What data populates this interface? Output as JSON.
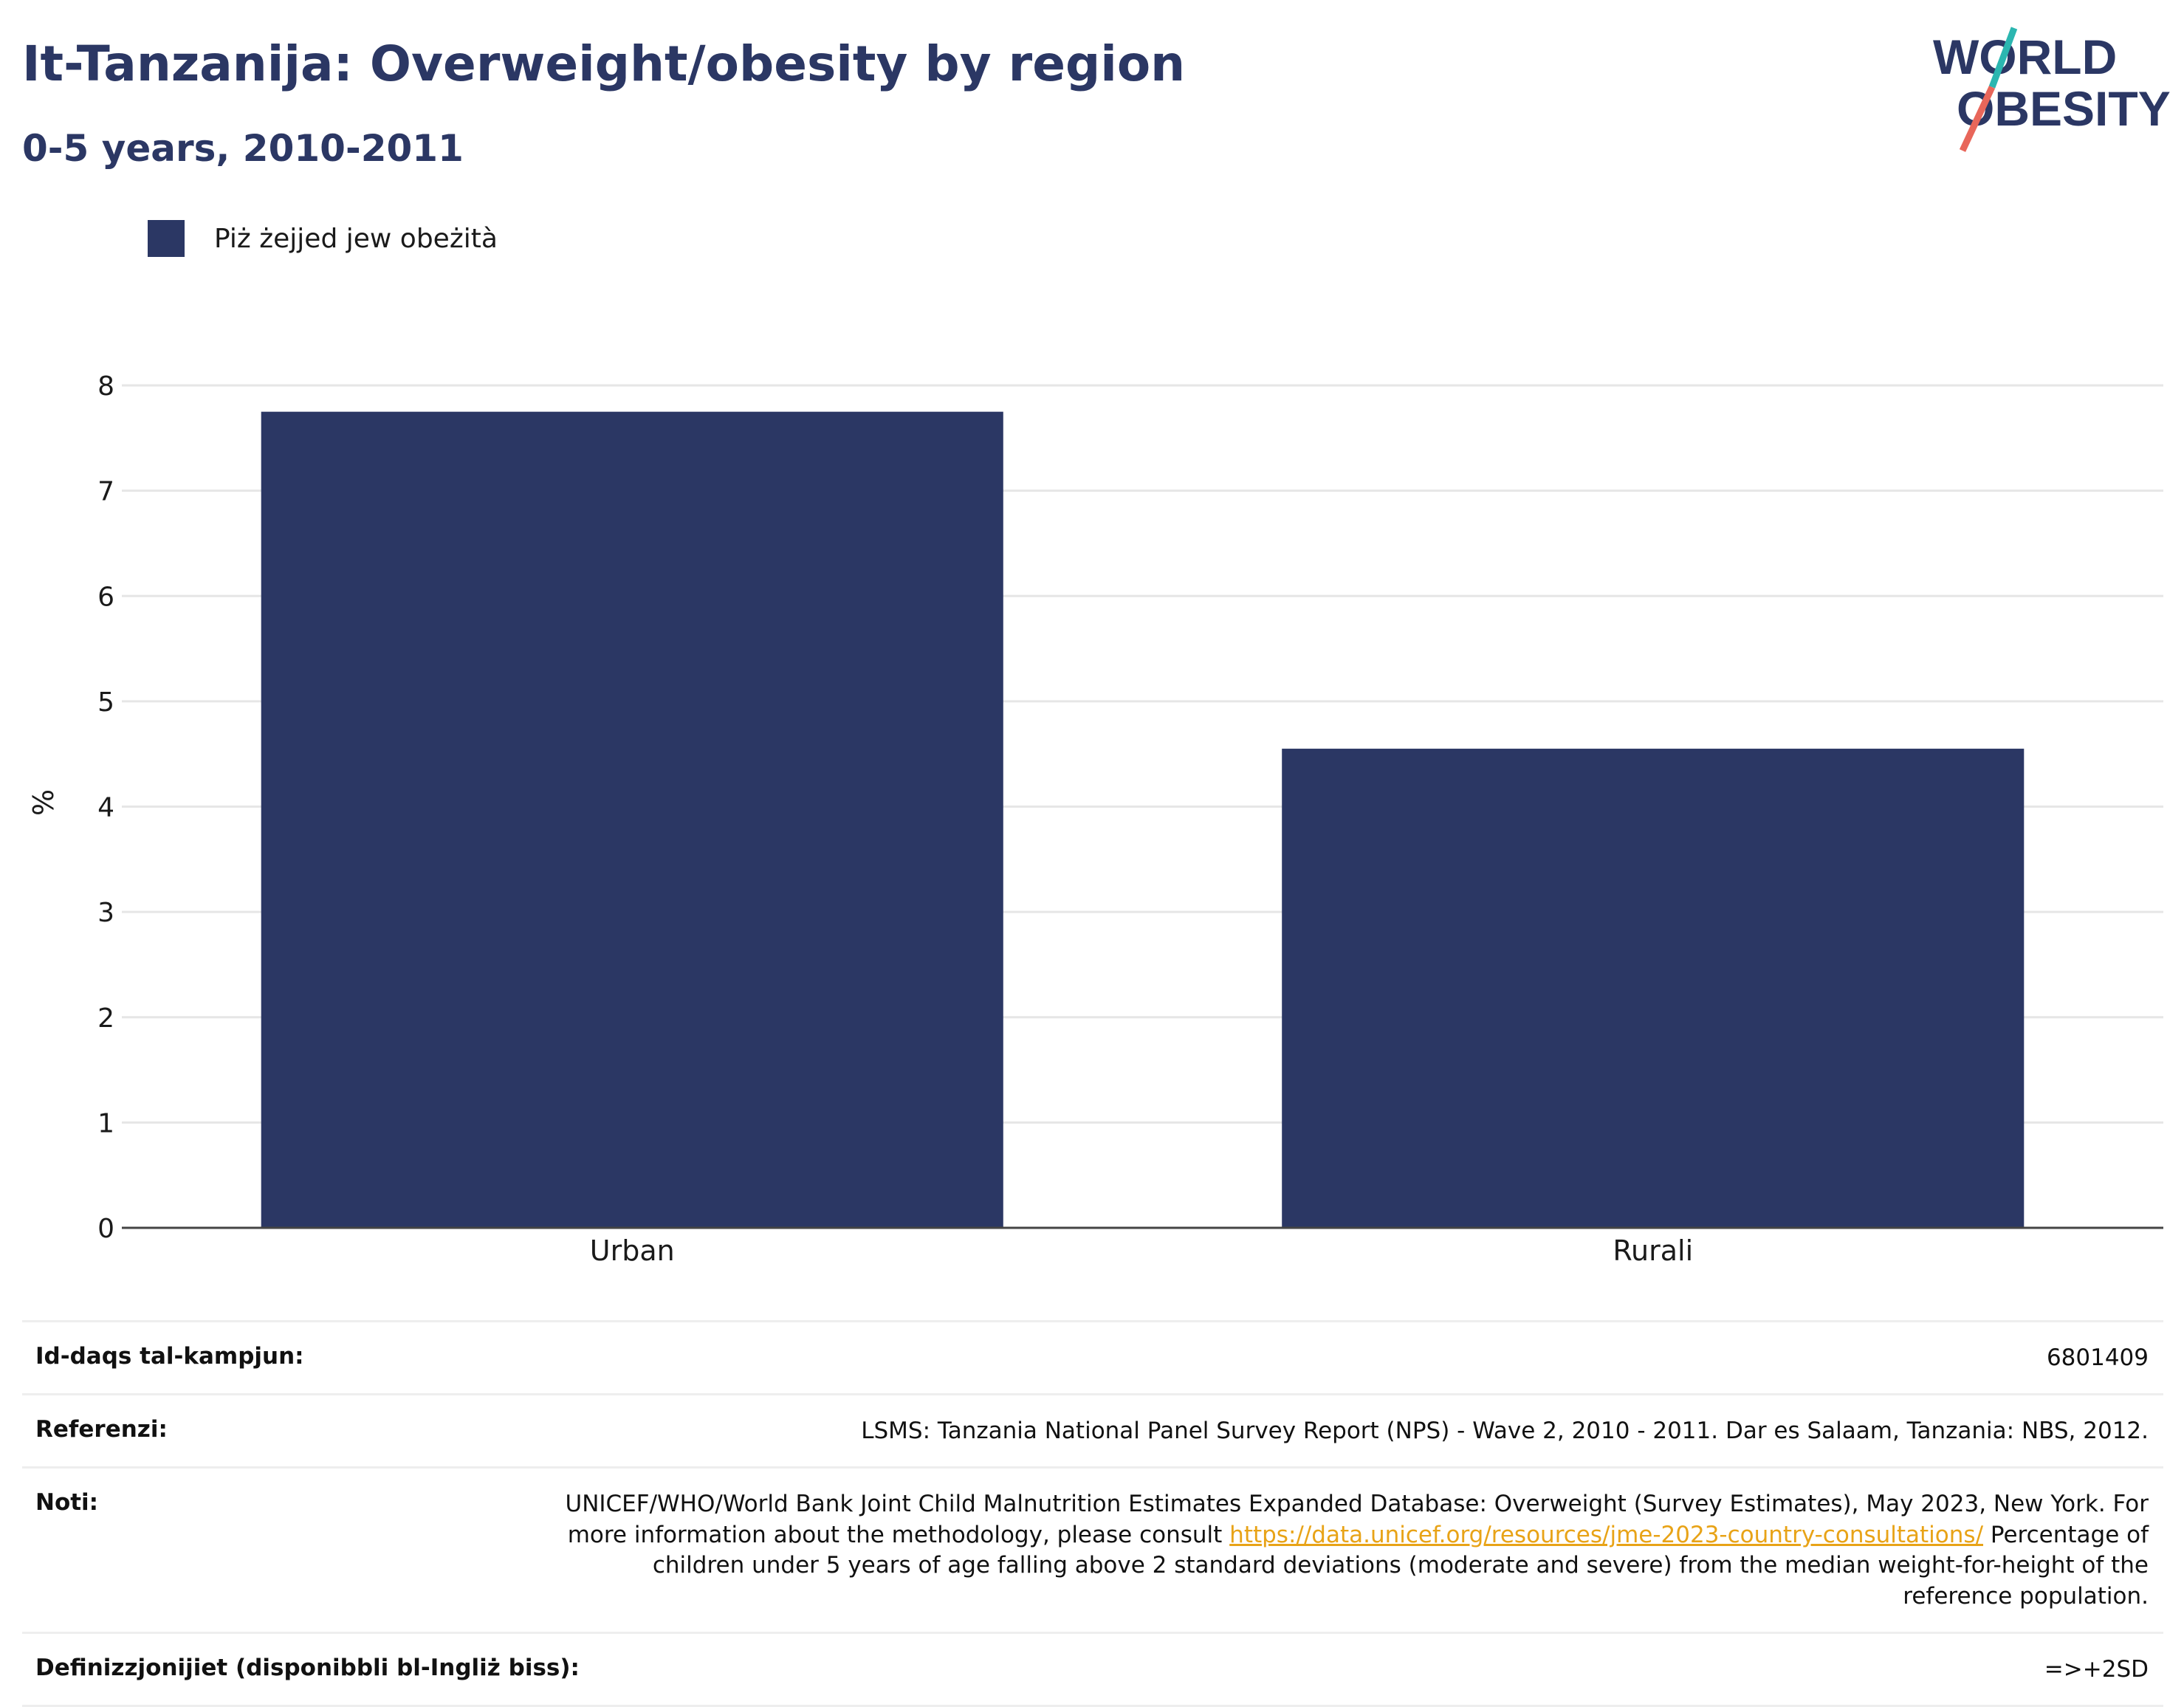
{
  "header": {
    "title": "It-Tanzanija: Overweight/obesity by region",
    "subtitle": "0-5 years, 2010-2011"
  },
  "logo": {
    "line1": "WORLD",
    "line2": "OBESITY"
  },
  "colors": {
    "bar": "#2b3764",
    "title": "#2b3764",
    "link": "#e8a317",
    "logo_teal": "#2bb6b0",
    "logo_coral": "#e8665a"
  },
  "legend": {
    "label": "Piż żejjed jew obeżità"
  },
  "chart_data": {
    "type": "bar",
    "title": "It-Tanzanija: Overweight/obesity by region",
    "subtitle": "0-5 years, 2010-2011",
    "categories": [
      "Urban",
      "Rurali"
    ],
    "series": [
      {
        "name": "Piż żejjed jew obeżità",
        "values": [
          7.75,
          4.55
        ]
      }
    ],
    "xlabel": "",
    "ylabel": "%",
    "ylim": [
      0,
      8
    ],
    "yticks": [
      0,
      1,
      2,
      3,
      4,
      5,
      6,
      7,
      8
    ],
    "grid": true,
    "legend_position": "top-left"
  },
  "footer": {
    "sample_size": {
      "label": "Id-daqs tal-kampjun:",
      "value": "6801409"
    },
    "references": {
      "label": "Referenzi:",
      "value": "LSMS: Tanzania National Panel Survey Report (NPS) - Wave 2, 2010 - 2011. Dar es Salaam, Tanzania: NBS, 2012."
    },
    "notes": {
      "label": "Noti:",
      "text1": "UNICEF/WHO/World Bank Joint Child Malnutrition Estimates Expanded Database: Overweight (Survey Estimates), May 2023, New York. For more information about the methodology, please consult ",
      "link": "https://data.unicef.org/resources/jme-2023-country-consultations/",
      "text2": " Percentage of children under 5 years of age falling above 2 standard deviations (moderate and severe) from the median weight-for-height of the reference population."
    },
    "definitions": {
      "label": "Definizzjonijiet (disponibbli bl-Ingliż biss):",
      "value": "=>+2SD"
    }
  }
}
